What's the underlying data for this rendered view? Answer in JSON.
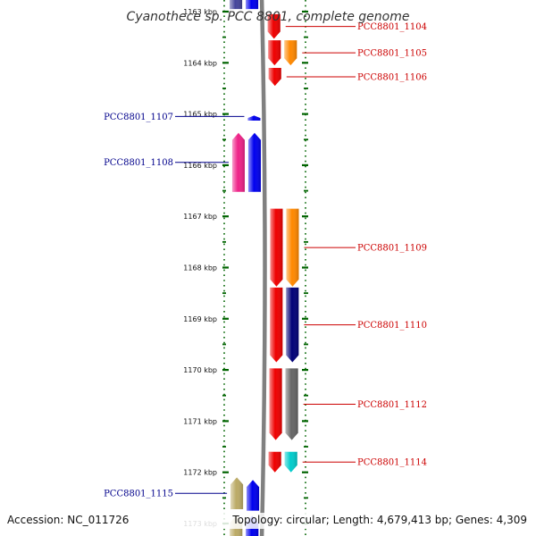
{
  "title": "Cyanothece sp. PCC 8801, complete genome",
  "footer": {
    "accession": "Accession: NC_011726",
    "topology": "Topology: circular; Length: 4,679,413 bp; Genes: 4,309"
  },
  "axis": {
    "ticks": [
      {
        "label": "1163 kbp",
        "kbp": 1163
      },
      {
        "label": "1164 kbp",
        "kbp": 1164
      },
      {
        "label": "1165 kbp",
        "kbp": 1165
      },
      {
        "label": "1166 kbp",
        "kbp": 1166
      },
      {
        "label": "1167 kbp",
        "kbp": 1167
      },
      {
        "label": "1168 kbp",
        "kbp": 1168
      },
      {
        "label": "1169 kbp",
        "kbp": 1169
      },
      {
        "label": "1170 kbp",
        "kbp": 1170
      },
      {
        "label": "1171 kbp",
        "kbp": 1171
      },
      {
        "label": "1172 kbp",
        "kbp": 1172
      },
      {
        "label": "1173 kbp",
        "kbp": 1173
      }
    ]
  },
  "colors": {
    "label_forward": "#00008b",
    "label_reverse": "#cc0000",
    "backbone": "#808080",
    "ticks": "#006400"
  },
  "genes": [
    {
      "strand": "+",
      "track": "outer",
      "start": 1162.55,
      "end": 1162.95,
      "color": "#44449a",
      "label": ""
    },
    {
      "strand": "+",
      "track": "inner",
      "start": 1162.55,
      "end": 1162.95,
      "color": "#0000ee",
      "label": ""
    },
    {
      "strand": "-",
      "track": "inner",
      "start": 1163.05,
      "end": 1163.53,
      "color": "#ee0000",
      "label": "PCC8801_1104"
    },
    {
      "strand": "-",
      "track": "inner",
      "start": 1163.56,
      "end": 1164.05,
      "color": "#ee0000",
      "label": ""
    },
    {
      "strand": "-",
      "track": "outer",
      "start": 1163.56,
      "end": 1164.05,
      "color": "#ff8800",
      "label": "PCC8801_1105"
    },
    {
      "strand": "-",
      "track": "inner",
      "start": 1164.1,
      "end": 1164.45,
      "color": "#ee0000",
      "label": "PCC8801_1106"
    },
    {
      "strand": "+",
      "track": "inner",
      "start": 1165.03,
      "end": 1165.13,
      "color": "#0000ee",
      "label": "PCC8801_1107"
    },
    {
      "strand": "+",
      "track": "outer",
      "start": 1165.37,
      "end": 1166.52,
      "color": "#ee2288",
      "label": "PCC8801_1108"
    },
    {
      "strand": "+",
      "track": "inner",
      "start": 1165.37,
      "end": 1166.52,
      "color": "#0000ee",
      "label": ""
    },
    {
      "strand": "-",
      "track": "inner",
      "start": 1166.85,
      "end": 1168.37,
      "color": "#ee0000",
      "label": ""
    },
    {
      "strand": "-",
      "track": "outer",
      "start": 1166.85,
      "end": 1168.37,
      "color": "#ff8800",
      "label": "PCC8801_1109"
    },
    {
      "strand": "-",
      "track": "inner",
      "start": 1168.39,
      "end": 1169.85,
      "color": "#ee0000",
      "label": ""
    },
    {
      "strand": "-",
      "track": "outer",
      "start": 1168.39,
      "end": 1169.85,
      "color": "#000077",
      "label": "PCC8801_1110"
    },
    {
      "strand": "-",
      "track": "inner",
      "start": 1169.97,
      "end": 1171.37,
      "color": "#ee0000",
      "label": ""
    },
    {
      "strand": "-",
      "track": "outer",
      "start": 1169.97,
      "end": 1171.37,
      "color": "#666666",
      "label": "PCC8801_1112"
    },
    {
      "strand": "-",
      "track": "inner",
      "start": 1171.6,
      "end": 1172.0,
      "color": "#ee0000",
      "label": ""
    },
    {
      "strand": "-",
      "track": "outer",
      "start": 1171.6,
      "end": 1172.0,
      "color": "#00cccc",
      "label": "PCC8801_1114"
    },
    {
      "strand": "+",
      "track": "outer",
      "start": 1172.1,
      "end": 1172.72,
      "color": "#bbaa66",
      "label": "PCC8801_1115"
    },
    {
      "strand": "+",
      "track": "inner",
      "start": 1172.15,
      "end": 1172.75,
      "color": "#0000ee",
      "label": ""
    },
    {
      "strand": "+",
      "track": "outer",
      "start": 1172.85,
      "end": 1173.35,
      "color": "#bbaa66",
      "label": ""
    },
    {
      "strand": "+",
      "track": "inner",
      "start": 1172.85,
      "end": 1173.35,
      "color": "#0000ee",
      "label": ""
    }
  ]
}
